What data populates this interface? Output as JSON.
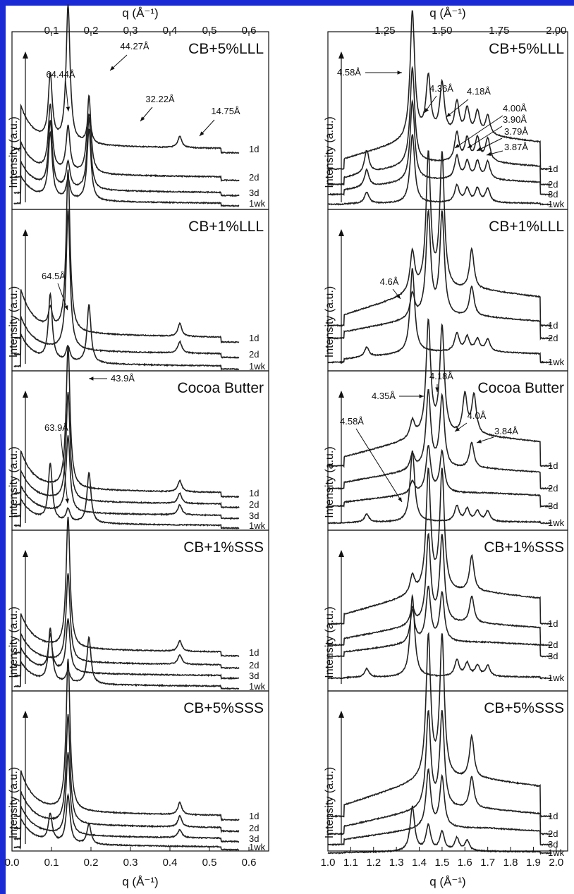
{
  "colors": {
    "frame": "#1a2bd6",
    "line": "#222222"
  },
  "left_axis": {
    "top_label": "q (Å⁻¹)",
    "bottom_label": "q (Å⁻¹)",
    "top_ticks": [
      "0.1",
      "0.2",
      "0.3",
      "0.4",
      "0.5",
      "0.6"
    ],
    "bottom_ticks": [
      "0.0",
      "0.1",
      "0.2",
      "0.3",
      "0.4",
      "0.5",
      "0.6"
    ]
  },
  "right_axis": {
    "top_label": "q (Å⁻¹)",
    "bottom_label": "q (Å⁻¹)",
    "top_ticks": [
      "1.25",
      "1.50",
      "1.75",
      "2.00"
    ],
    "bottom_ticks": [
      "1.0",
      "1.1",
      "1.2",
      "1.3",
      "1.4",
      "1.5",
      "1.6",
      "1.7",
      "1.8",
      "1.9",
      "2.0",
      "2."
    ]
  },
  "ylabel": "Intensity (a.u.)",
  "panels": [
    {
      "title": "CB+5%LLL",
      "series": [
        "1d",
        "2d",
        "3d",
        "1wk"
      ]
    },
    {
      "title": "CB+1%LLL",
      "series": [
        "1d",
        "2d",
        "1wk"
      ]
    },
    {
      "title": "Cocoa Butter",
      "series": [
        "1d",
        "2d",
        "3d",
        "1wk"
      ]
    },
    {
      "title": "CB+1%SSS",
      "series": [
        "1d",
        "2d",
        "3d",
        "1wk"
      ]
    },
    {
      "title": "CB+5%SSS",
      "series": [
        "1d",
        "2d",
        "3d",
        "1wk"
      ]
    }
  ],
  "annotations": {
    "left": [
      [
        "44.27Å",
        "64.44Å",
        "32.22Å",
        "14.75Å"
      ],
      [
        "64.5Å"
      ],
      [
        "43.9Å",
        "63.9Å"
      ],
      [],
      []
    ],
    "right": [
      [
        "4.58Å",
        "4.36Å",
        "4.18Å",
        "4.00Å",
        "3.90Å",
        "3.79Å",
        "3.87Å"
      ],
      [
        "4.6Å"
      ],
      [
        "4.18Å",
        "4.35Å",
        "4.0Å",
        "3.84Å",
        "4.58Å"
      ],
      [],
      []
    ]
  },
  "chart_data": [
    {
      "type": "line",
      "panel": "left",
      "title": "CB+5%LLL",
      "xlabel": "q (Å⁻¹)",
      "ylabel": "Intensity (a.u.)",
      "xlim": [
        0.0,
        0.65
      ],
      "series": [
        {
          "name": "1d",
          "peaks": [
            [
              0.097,
              0.45
            ],
            [
              0.142,
              0.95
            ],
            [
              0.195,
              0.2
            ],
            [
              0.425,
              0.08
            ]
          ]
        },
        {
          "name": "2d",
          "peaks": [
            [
              0.097,
              0.5
            ],
            [
              0.142,
              0.35
            ],
            [
              0.195,
              0.6
            ]
          ]
        },
        {
          "name": "3d",
          "peaks": [
            [
              0.097,
              0.5
            ],
            [
              0.142,
              0.2
            ],
            [
              0.195,
              0.55
            ]
          ]
        },
        {
          "name": "1wk",
          "peaks": [
            [
              0.097,
              0.5
            ],
            [
              0.142,
              0.15
            ],
            [
              0.195,
              0.55
            ]
          ]
        }
      ]
    },
    {
      "type": "line",
      "panel": "left",
      "title": "CB+1%LLL",
      "xlim": [
        0.0,
        0.65
      ],
      "series": [
        {
          "name": "1d",
          "peaks": [
            [
              0.097,
              0.12
            ],
            [
              0.142,
              1.0
            ],
            [
              0.425,
              0.08
            ]
          ]
        },
        {
          "name": "2d",
          "peaks": [
            [
              0.142,
              0.95
            ],
            [
              0.425,
              0.08
            ]
          ]
        },
        {
          "name": "1wk",
          "peaks": [
            [
              0.097,
              0.45
            ],
            [
              0.142,
              0.1
            ],
            [
              0.195,
              0.4
            ]
          ]
        }
      ]
    },
    {
      "type": "line",
      "panel": "left",
      "title": "Cocoa Butter",
      "xlim": [
        0.0,
        0.65
      ],
      "series": [
        {
          "name": "1d",
          "peaks": [
            [
              0.142,
              1.0
            ],
            [
              0.425,
              0.08
            ]
          ]
        },
        {
          "name": "2d",
          "peaks": [
            [
              0.142,
              0.85
            ],
            [
              0.425,
              0.08
            ]
          ]
        },
        {
          "name": "3d",
          "peaks": [
            [
              0.142,
              0.6
            ],
            [
              0.425,
              0.08
            ]
          ]
        },
        {
          "name": "1wk",
          "peaks": [
            [
              0.097,
              0.45
            ],
            [
              0.142,
              0.1
            ],
            [
              0.195,
              0.4
            ]
          ]
        }
      ]
    },
    {
      "type": "line",
      "panel": "left",
      "title": "CB+1%SSS",
      "xlim": [
        0.0,
        0.65
      ],
      "series": [
        {
          "name": "1d",
          "peaks": [
            [
              0.142,
              1.0
            ],
            [
              0.425,
              0.08
            ]
          ]
        },
        {
          "name": "2d",
          "peaks": [
            [
              0.142,
              0.75
            ],
            [
              0.425,
              0.08
            ]
          ]
        },
        {
          "name": "3d",
          "peaks": [
            [
              0.097,
              0.3
            ],
            [
              0.142,
              0.45
            ]
          ]
        },
        {
          "name": "1wk",
          "peaks": [
            [
              0.097,
              0.45
            ],
            [
              0.142,
              0.1
            ],
            [
              0.195,
              0.4
            ]
          ]
        }
      ]
    },
    {
      "type": "line",
      "panel": "left",
      "title": "CB+5%SSS",
      "xlim": [
        0.0,
        0.65
      ],
      "series": [
        {
          "name": "1d",
          "peaks": [
            [
              0.142,
              1.0
            ],
            [
              0.425,
              0.08
            ]
          ]
        },
        {
          "name": "2d",
          "peaks": [
            [
              0.142,
              0.8
            ],
            [
              0.425,
              0.08
            ]
          ]
        },
        {
          "name": "3d",
          "peaks": [
            [
              0.142,
              0.6
            ],
            [
              0.425,
              0.06
            ]
          ]
        },
        {
          "name": "1wk",
          "peaks": [
            [
              0.097,
              0.2
            ],
            [
              0.142,
              0.35
            ],
            [
              0.195,
              0.15
            ]
          ]
        }
      ]
    },
    {
      "type": "line",
      "panel": "right",
      "title": "CB+5%LLL",
      "xlim": [
        1.0,
        2.05
      ],
      "series": [
        {
          "name": "1d",
          "peaks": [
            [
              1.37,
              1.0
            ],
            [
              1.44,
              0.45
            ],
            [
              1.5,
              0.4
            ],
            [
              1.565,
              0.25
            ],
            [
              1.61,
              0.2
            ],
            [
              1.655,
              0.18
            ],
            [
              1.7,
              0.15
            ]
          ]
        },
        {
          "name": "2d",
          "peaks": [
            [
              1.17,
              0.2
            ],
            [
              1.37,
              0.85
            ],
            [
              1.565,
              0.25
            ],
            [
              1.61,
              0.2
            ],
            [
              1.655,
              0.2
            ],
            [
              1.7,
              0.2
            ]
          ]
        },
        {
          "name": "3d",
          "peaks": [
            [
              1.17,
              0.15
            ],
            [
              1.37,
              0.7
            ],
            [
              1.565,
              0.2
            ],
            [
              1.61,
              0.15
            ],
            [
              1.655,
              0.15
            ],
            [
              1.7,
              0.15
            ]
          ]
        },
        {
          "name": "1wk",
          "peaks": [
            [
              1.17,
              0.1
            ],
            [
              1.37,
              0.6
            ],
            [
              1.565,
              0.15
            ],
            [
              1.61,
              0.12
            ],
            [
              1.655,
              0.12
            ],
            [
              1.7,
              0.12
            ]
          ]
        }
      ]
    },
    {
      "type": "line",
      "panel": "right",
      "title": "CB+1%LLL",
      "xlim": [
        1.0,
        2.05
      ],
      "series": [
        {
          "name": "1d",
          "peaks": [
            [
              1.37,
              0.3
            ],
            [
              1.44,
              1.0
            ],
            [
              1.5,
              1.0
            ],
            [
              1.63,
              0.3
            ]
          ]
        },
        {
          "name": "2d",
          "peaks": [
            [
              1.37,
              0.2
            ],
            [
              1.44,
              0.85
            ],
            [
              1.5,
              0.85
            ],
            [
              1.63,
              0.25
            ]
          ]
        },
        {
          "name": "1wk",
          "peaks": [
            [
              1.17,
              0.08
            ],
            [
              1.37,
              0.7
            ],
            [
              1.565,
              0.15
            ],
            [
              1.61,
              0.12
            ],
            [
              1.655,
              0.1
            ],
            [
              1.7,
              0.1
            ]
          ]
        }
      ]
    },
    {
      "type": "line",
      "panel": "right",
      "title": "Cocoa Butter",
      "xlim": [
        1.0,
        2.05
      ],
      "series": [
        {
          "name": "1d",
          "peaks": [
            [
              1.37,
              0.15
            ],
            [
              1.44,
              1.0
            ],
            [
              1.5,
              0.95
            ],
            [
              1.6,
              0.35
            ],
            [
              1.64,
              0.35
            ]
          ]
        },
        {
          "name": "2d",
          "peaks": [
            [
              1.37,
              0.15
            ],
            [
              1.44,
              0.75
            ],
            [
              1.5,
              0.7
            ],
            [
              1.63,
              0.25
            ]
          ]
        },
        {
          "name": "3d",
          "peaks": [
            [
              1.37,
              0.12
            ],
            [
              1.44,
              0.45
            ],
            [
              1.5,
              0.4
            ]
          ]
        },
        {
          "name": "1wk",
          "peaks": [
            [
              1.17,
              0.08
            ],
            [
              1.37,
              0.7
            ],
            [
              1.565,
              0.15
            ],
            [
              1.61,
              0.12
            ],
            [
              1.655,
              0.1
            ],
            [
              1.7,
              0.1
            ]
          ]
        }
      ]
    },
    {
      "type": "line",
      "panel": "right",
      "title": "CB+1%SSS",
      "xlim": [
        1.0,
        2.05
      ],
      "series": [
        {
          "name": "1d",
          "peaks": [
            [
              1.37,
              0.15
            ],
            [
              1.44,
              1.0
            ],
            [
              1.5,
              1.0
            ],
            [
              1.63,
              0.3
            ]
          ]
        },
        {
          "name": "2d",
          "peaks": [
            [
              1.37,
              0.15
            ],
            [
              1.44,
              0.8
            ],
            [
              1.5,
              0.8
            ],
            [
              1.63,
              0.25
            ]
          ]
        },
        {
          "name": "3d",
          "peaks": [
            [
              1.37,
              0.3
            ],
            [
              1.44,
              0.5
            ],
            [
              1.5,
              0.45
            ]
          ]
        },
        {
          "name": "1wk",
          "peaks": [
            [
              1.17,
              0.08
            ],
            [
              1.37,
              0.75
            ],
            [
              1.565,
              0.15
            ],
            [
              1.61,
              0.12
            ],
            [
              1.655,
              0.1
            ],
            [
              1.7,
              0.1
            ]
          ]
        }
      ]
    },
    {
      "type": "line",
      "panel": "right",
      "title": "CB+5%SSS",
      "xlim": [
        1.0,
        2.05
      ],
      "series": [
        {
          "name": "1d",
          "peaks": [
            [
              1.44,
              1.0
            ],
            [
              1.5,
              1.0
            ],
            [
              1.63,
              0.3
            ]
          ]
        },
        {
          "name": "2d",
          "peaks": [
            [
              1.44,
              0.75
            ],
            [
              1.5,
              0.75
            ],
            [
              1.63,
              0.25
            ]
          ]
        },
        {
          "name": "3d",
          "peaks": [
            [
              1.44,
              0.45
            ],
            [
              1.5,
              0.4
            ]
          ]
        },
        {
          "name": "1wk",
          "peaks": [
            [
              1.37,
              0.35
            ],
            [
              1.44,
              0.2
            ],
            [
              1.5,
              0.15
            ],
            [
              1.565,
              0.1
            ],
            [
              1.61,
              0.08
            ]
          ]
        }
      ]
    }
  ]
}
